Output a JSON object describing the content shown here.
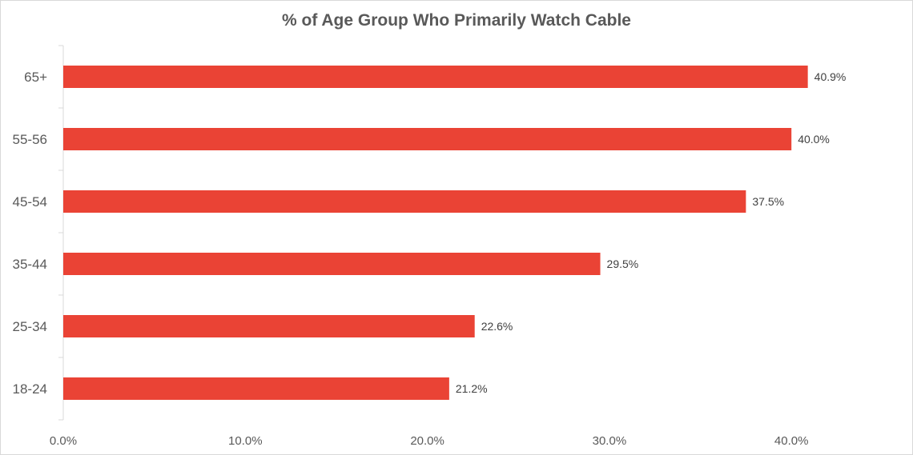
{
  "chart_data": {
    "type": "bar",
    "orientation": "horizontal",
    "title": "% of Age Group Who Primarily Watch Cable",
    "categories": [
      "18-24",
      "25-34",
      "35-44",
      "45-54",
      "55-56",
      "65+"
    ],
    "values": [
      21.2,
      22.6,
      29.5,
      37.5,
      40.0,
      40.9
    ],
    "data_labels": [
      "21.2%",
      "22.6%",
      "29.5%",
      "37.5%",
      "40.0%",
      "40.9%"
    ],
    "x_ticks": [
      0,
      10,
      20,
      30,
      40
    ],
    "x_tick_labels": [
      "0.0%",
      "10.0%",
      "20.0%",
      "30.0%",
      "40.0%"
    ],
    "xlim": [
      0,
      45
    ],
    "bar_color": "#EA4335",
    "grid": false,
    "legend": "none"
  }
}
